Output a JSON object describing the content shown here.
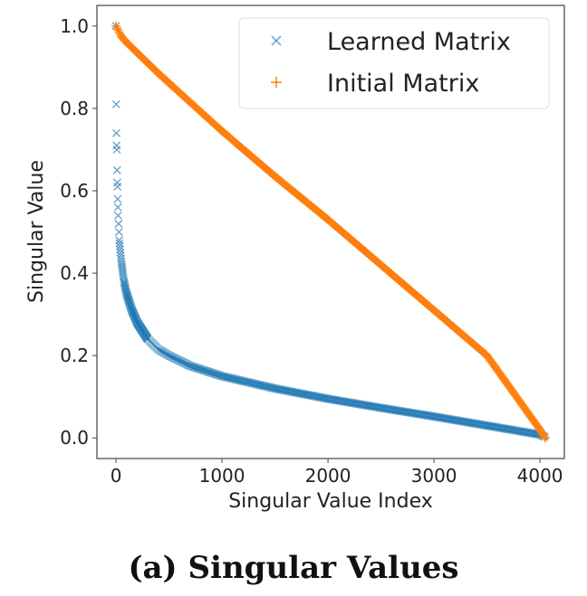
{
  "chart_data": {
    "type": "scatter",
    "xlabel": "Singular Value Index",
    "ylabel": "Singular Value",
    "xlim": [
      -180,
      4230
    ],
    "ylim": [
      -0.05,
      1.05
    ],
    "xticks": [
      0,
      1000,
      2000,
      3000,
      4000
    ],
    "xtick_labels": [
      "0",
      "1000",
      "2000",
      "3000",
      "4000"
    ],
    "yticks": [
      0.0,
      0.2,
      0.4,
      0.6,
      0.8,
      1.0
    ],
    "ytick_labels": [
      "0.0",
      "0.2",
      "0.4",
      "0.6",
      "0.8",
      "1.0"
    ],
    "grid": false,
    "legend_position": "top-right",
    "series": [
      {
        "name": "Learned Matrix",
        "marker": "x",
        "color": "#1f77b4",
        "outliers": {
          "x": [
            0,
            2,
            4,
            6,
            8,
            10,
            12,
            14,
            16,
            18,
            20,
            24,
            28
          ],
          "y": [
            1.0,
            0.81,
            0.74,
            0.71,
            0.7,
            0.65,
            0.62,
            0.61,
            0.58,
            0.56,
            0.54,
            0.52,
            0.5
          ]
        },
        "x": [
          30,
          50,
          75,
          100,
          150,
          200,
          300,
          400,
          500,
          700,
          1000,
          1500,
          2000,
          2500,
          3000,
          3500,
          4000,
          4050
        ],
        "y": [
          0.48,
          0.43,
          0.38,
          0.35,
          0.31,
          0.28,
          0.24,
          0.215,
          0.2,
          0.175,
          0.15,
          0.12,
          0.095,
          0.073,
          0.052,
          0.03,
          0.008,
          0.002
        ]
      },
      {
        "name": "Initial Matrix",
        "marker": "+",
        "color": "#ff7f0e",
        "x": [
          0,
          50,
          100,
          200,
          400,
          700,
          1000,
          1500,
          2000,
          2500,
          3000,
          3500,
          4000,
          4050
        ],
        "y": [
          1.0,
          0.975,
          0.96,
          0.935,
          0.885,
          0.815,
          0.745,
          0.635,
          0.53,
          0.42,
          0.31,
          0.2,
          0.02,
          0.0
        ]
      }
    ]
  },
  "caption": "(a) Singular Values"
}
